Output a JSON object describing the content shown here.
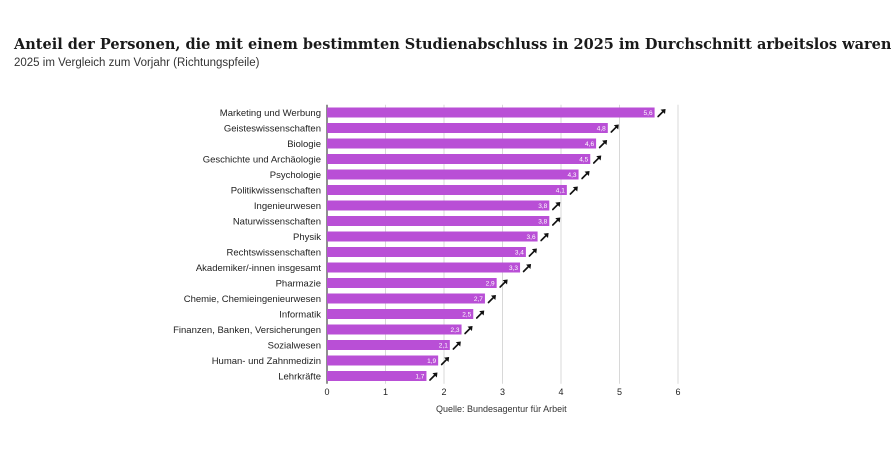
{
  "header": {
    "title": "Anteil der Personen, die mit einem bestimmten Studienabschluss in 2025 im Durchschnitt arbeitslos waren",
    "subtitle": "2025 im Vergleich zum Vorjahr (Richtungspfeile)"
  },
  "source": "Quelle: Bundesagentur für Arbeit",
  "chart_data": {
    "type": "bar",
    "orientation": "horizontal",
    "categories": [
      "Marketing und Werbung",
      "Geisteswissenschaften",
      "Biologie",
      "Geschichte und Archäologie",
      "Psychologie",
      "Politikwissenschaften",
      "Ingenieurwesen",
      "Naturwissenschaften",
      "Physik",
      "Rechtswissenschaften",
      "Akademiker/-innen insgesamt",
      "Pharmazie",
      "Chemie, Chemieingenieurwesen",
      "Informatik",
      "Finanzen, Banken, Versicherungen",
      "Sozialwesen",
      "Human- und Zahnmedizin",
      "Lehrkräfte"
    ],
    "values": [
      5.6,
      4.8,
      4.6,
      4.5,
      4.3,
      4.1,
      3.8,
      3.8,
      3.6,
      3.4,
      3.3,
      2.9,
      2.7,
      2.5,
      2.3,
      2.1,
      1.9,
      1.7
    ],
    "labels": [
      "5,6",
      "4,8",
      "4,6",
      "4,5",
      "4,3",
      "4,1",
      "3,8",
      "3,8",
      "3,6",
      "3,4",
      "3,3",
      "2,9",
      "2,7",
      "2,5",
      "2,3",
      "2,1",
      "1,9",
      "1,7"
    ],
    "trend": [
      "up",
      "up",
      "up",
      "up",
      "up",
      "up",
      "up",
      "up",
      "up",
      "up",
      "up",
      "up",
      "up",
      "up",
      "up",
      "up",
      "up",
      "up"
    ],
    "xlim": [
      0,
      6
    ],
    "xticks": [
      0,
      1,
      2,
      3,
      4,
      5,
      6
    ],
    "grid": true,
    "bar_color": "#b94fd6",
    "arrow_color": "#111111"
  }
}
